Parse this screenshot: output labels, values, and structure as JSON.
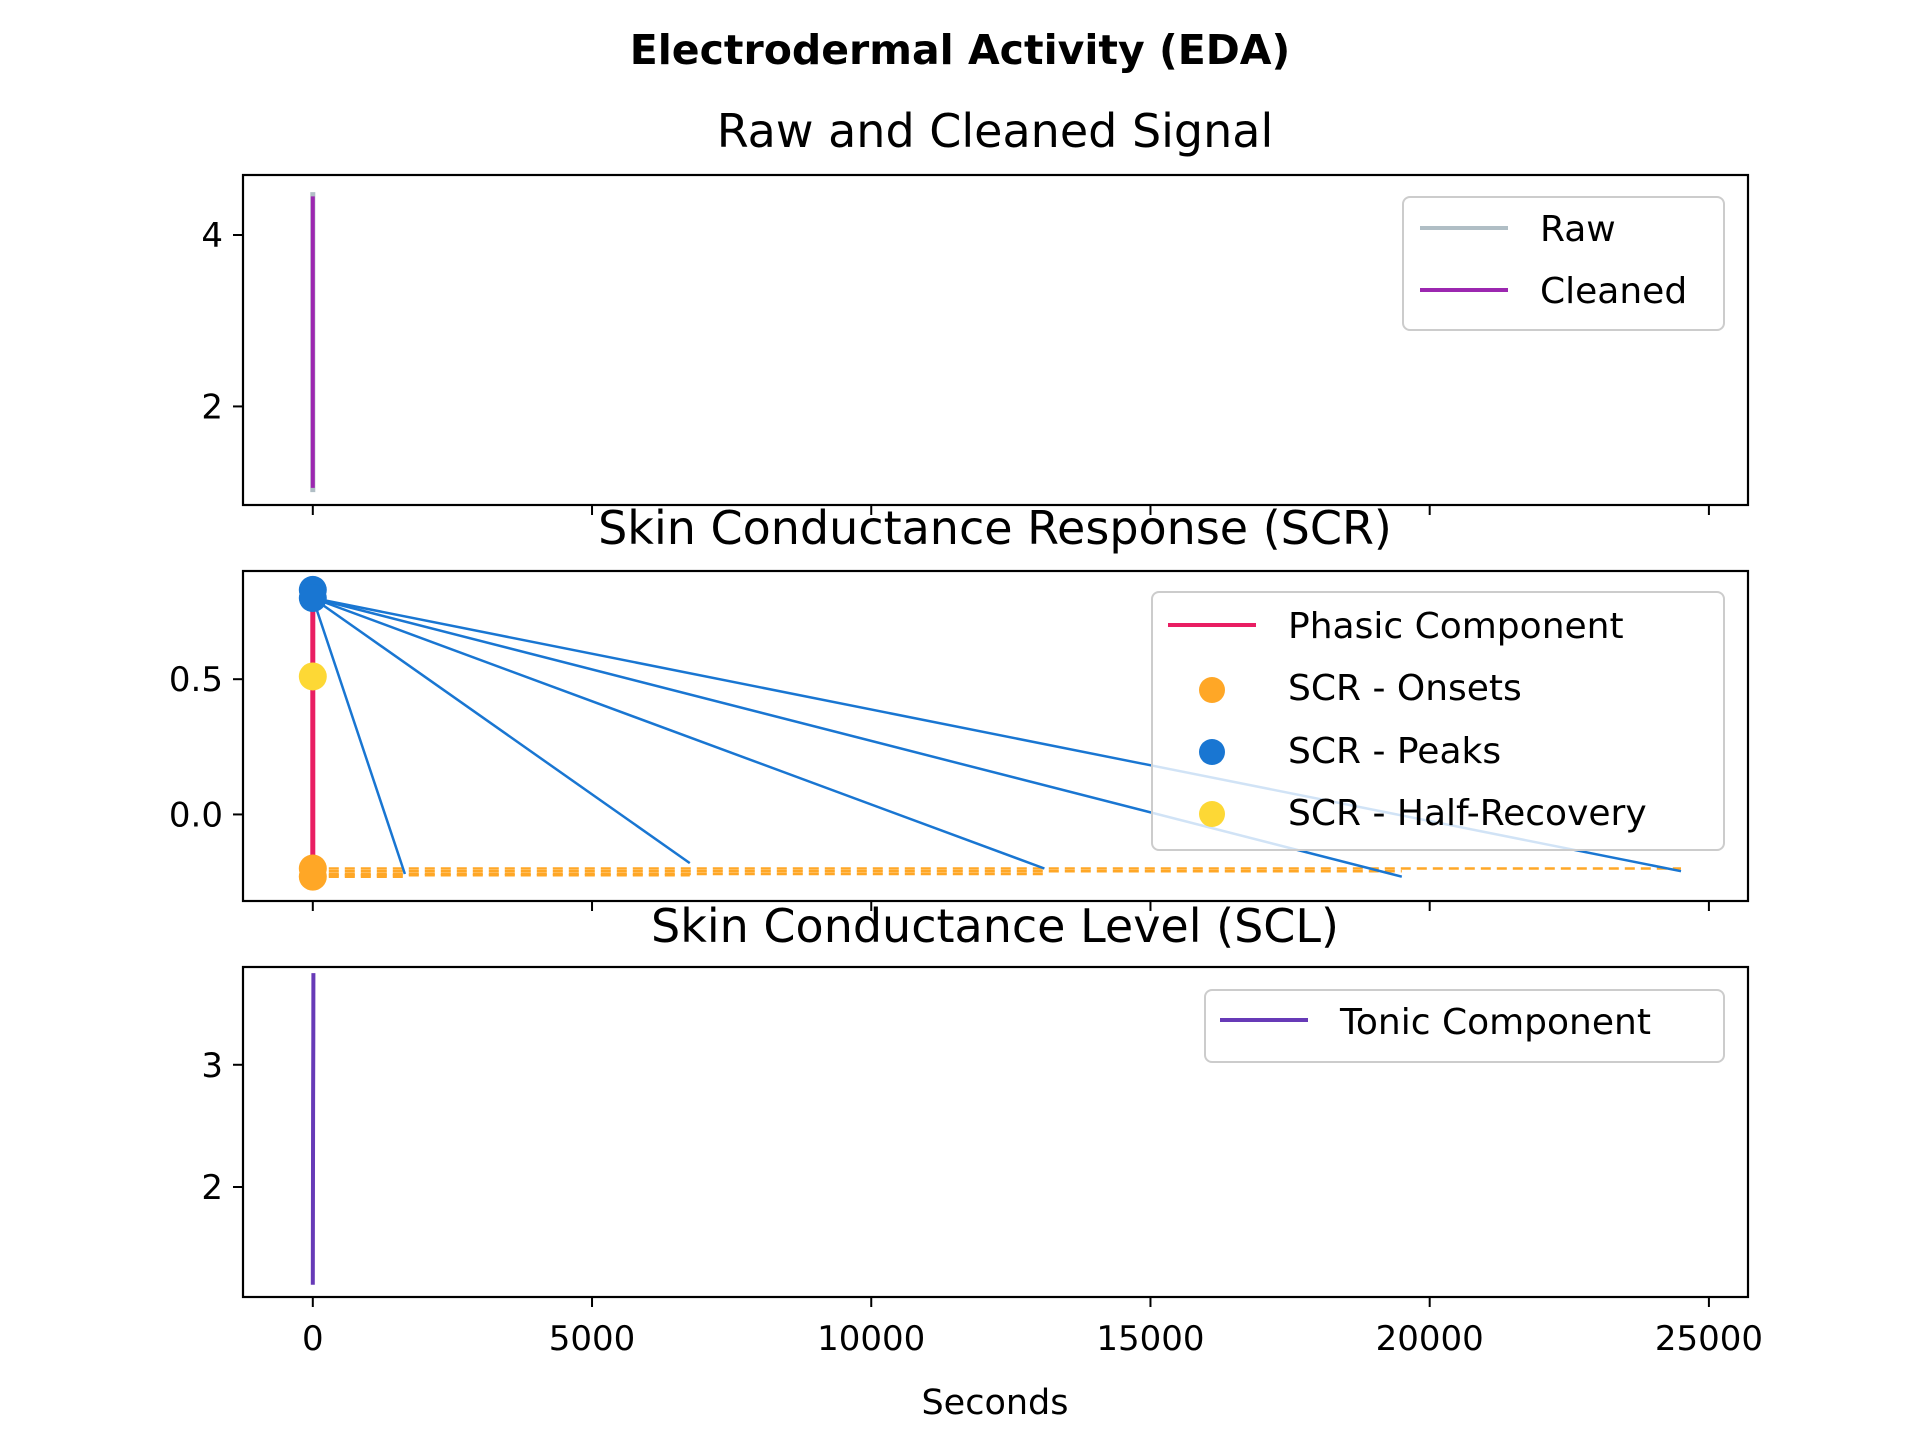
{
  "figure": {
    "suptitle": "Electrodermal Activity (EDA)",
    "xlabel": "Seconds"
  },
  "colors": {
    "raw": "#B0BEC5",
    "cleaned": "#9C27B0",
    "phasic": "#E91E63",
    "onsets": "#FFA726",
    "peaks": "#1976D2",
    "half_recovery": "#FDD835",
    "tonic": "#673AB7"
  },
  "chart_data": [
    {
      "type": "line",
      "title": "Raw and Cleaned Signal",
      "xlim": [
        -1250,
        25700
      ],
      "ylim": [
        0.85,
        4.7
      ],
      "x_ticks": [
        0,
        5000,
        10000,
        15000,
        20000,
        25000
      ],
      "y_ticks": [
        2,
        4
      ],
      "legend_position": "upper right",
      "series": [
        {
          "name": "Raw",
          "x": [
            0,
            0,
            0,
            0,
            0,
            0
          ],
          "y": [
            1.0,
            1.6,
            2.3,
            3.1,
            3.8,
            4.5
          ]
        },
        {
          "name": "Cleaned",
          "x": [
            0,
            0,
            0,
            0,
            0,
            0
          ],
          "y": [
            1.05,
            1.6,
            2.3,
            3.1,
            3.9,
            4.45
          ]
        }
      ]
    },
    {
      "type": "line",
      "title": "Skin Conductance Response (SCR)",
      "xlim": [
        -1250,
        25700
      ],
      "ylim": [
        -0.32,
        0.9
      ],
      "x_ticks": [
        0,
        5000,
        10000,
        15000,
        20000,
        25000
      ],
      "y_ticks": [
        0.0,
        0.5
      ],
      "legend_position": "upper right",
      "series": [
        {
          "name": "Phasic Component",
          "x": [
            0,
            0,
            0,
            0
          ],
          "y": [
            -0.23,
            0.1,
            0.5,
            0.83
          ]
        },
        {
          "name": "SCR - Onsets",
          "x": [
            0,
            0
          ],
          "y": [
            -0.2,
            -0.23
          ]
        },
        {
          "name": "SCR - Peaks",
          "x": [
            0,
            0
          ],
          "y": [
            0.83,
            0.8
          ]
        },
        {
          "name": "SCR - Half-Recovery",
          "x": [
            0
          ],
          "y": [
            0.51
          ]
        }
      ],
      "peak_lines": [
        {
          "x": [
            0,
            1650
          ],
          "y": [
            0.8,
            -0.22
          ]
        },
        {
          "x": [
            0,
            6750
          ],
          "y": [
            0.8,
            -0.18
          ]
        },
        {
          "x": [
            0,
            13100
          ],
          "y": [
            0.8,
            -0.2
          ]
        },
        {
          "x": [
            0,
            19500
          ],
          "y": [
            0.8,
            -0.23
          ]
        },
        {
          "x": [
            0,
            24500
          ],
          "y": [
            0.8,
            -0.21
          ]
        }
      ],
      "onset_lines": [
        {
          "x": [
            0,
            24500
          ],
          "y": [
            -0.2,
            -0.2
          ]
        },
        {
          "x": [
            0,
            19500
          ],
          "y": [
            -0.21,
            -0.21
          ]
        },
        {
          "x": [
            0,
            13100
          ],
          "y": [
            -0.22,
            -0.22
          ]
        },
        {
          "x": [
            0,
            6750
          ],
          "y": [
            -0.225,
            -0.225
          ]
        },
        {
          "x": [
            0,
            1650
          ],
          "y": [
            -0.23,
            -0.23
          ]
        }
      ]
    },
    {
      "type": "line",
      "title": "Skin Conductance Level (SCL)",
      "xlim": [
        -1250,
        25700
      ],
      "ylim": [
        1.1,
        3.8
      ],
      "x_ticks": [
        0,
        5000,
        10000,
        15000,
        20000,
        25000
      ],
      "y_ticks": [
        2,
        3
      ],
      "legend_position": "upper right",
      "series": [
        {
          "name": "Tonic Component",
          "x": [
            0,
            0,
            0,
            0,
            0,
            0
          ],
          "y": [
            1.2,
            1.7,
            2.2,
            2.7,
            3.2,
            3.75
          ]
        }
      ]
    }
  ]
}
